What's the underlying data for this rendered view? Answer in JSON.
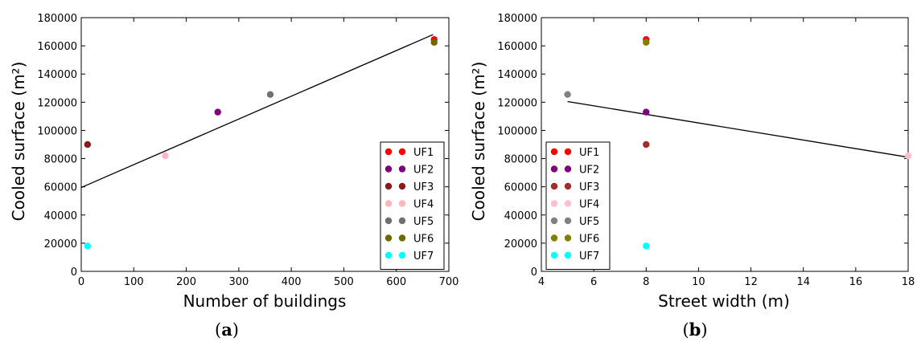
{
  "chart_data": [
    {
      "type": "scatter",
      "caption_open": "(",
      "caption_letter": "a",
      "caption_close": ")",
      "xlabel": "Number of buildings",
      "ylabel": "Cooled surface (m²)",
      "xlim": [
        0,
        700
      ],
      "ylim": [
        0,
        180000
      ],
      "xticks": [
        0,
        100,
        200,
        300,
        400,
        500,
        600,
        700
      ],
      "yticks": [
        0,
        20000,
        40000,
        60000,
        80000,
        100000,
        120000,
        140000,
        160000,
        180000
      ],
      "grid": false,
      "legend_position": "lower-right",
      "series": [
        {
          "name": "UF1",
          "color": "#ff0000",
          "points": [
            [
              672,
              164500
            ]
          ]
        },
        {
          "name": "UF2",
          "color": "#800080",
          "points": [
            [
              260,
              113000
            ]
          ]
        },
        {
          "name": "UF3",
          "color": "#8b1a1a",
          "points": [
            [
              12,
              90000
            ]
          ]
        },
        {
          "name": "UF4",
          "color": "#ffb6c1",
          "points": [
            [
              160,
              82000
            ]
          ]
        },
        {
          "name": "UF5",
          "color": "#707070",
          "points": [
            [
              360,
              125500
            ]
          ]
        },
        {
          "name": "UF6",
          "color": "#6b6b00",
          "points": [
            [
              672,
              162500
            ]
          ]
        },
        {
          "name": "UF7",
          "color": "#00ffff",
          "points": [
            [
              12,
              18000
            ]
          ]
        }
      ],
      "trendline": {
        "color": "#000000",
        "points": [
          [
            0,
            59500
          ],
          [
            670,
            168000
          ]
        ]
      }
    },
    {
      "type": "scatter",
      "caption_open": "(",
      "caption_letter": "b",
      "caption_close": ")",
      "xlabel": "Street width (m)",
      "ylabel": "Cooled surface (m²)",
      "xlim": [
        4,
        18
      ],
      "ylim": [
        0,
        180000
      ],
      "xticks": [
        4,
        6,
        8,
        10,
        12,
        14,
        16,
        18
      ],
      "yticks": [
        0,
        20000,
        40000,
        60000,
        80000,
        100000,
        120000,
        140000,
        160000,
        180000
      ],
      "grid": false,
      "legend_position": "lower-left",
      "series": [
        {
          "name": "UF1",
          "color": "#ff0000",
          "points": [
            [
              8,
              164500
            ]
          ]
        },
        {
          "name": "UF2",
          "color": "#800080",
          "points": [
            [
              8,
              113000
            ]
          ]
        },
        {
          "name": "UF3",
          "color": "#a52a2a",
          "points": [
            [
              8,
              90000
            ]
          ]
        },
        {
          "name": "UF4",
          "color": "#ffc0cb",
          "points": [
            [
              18,
              82000
            ]
          ]
        },
        {
          "name": "UF5",
          "color": "#808080",
          "points": [
            [
              5,
              125500
            ]
          ]
        },
        {
          "name": "UF6",
          "color": "#808000",
          "points": [
            [
              8,
              162500
            ]
          ]
        },
        {
          "name": "UF7",
          "color": "#00ffff",
          "points": [
            [
              8,
              18000
            ]
          ]
        }
      ],
      "trendline": {
        "color": "#000000",
        "points": [
          [
            5,
            120500
          ],
          [
            18,
            81000
          ]
        ]
      }
    }
  ]
}
